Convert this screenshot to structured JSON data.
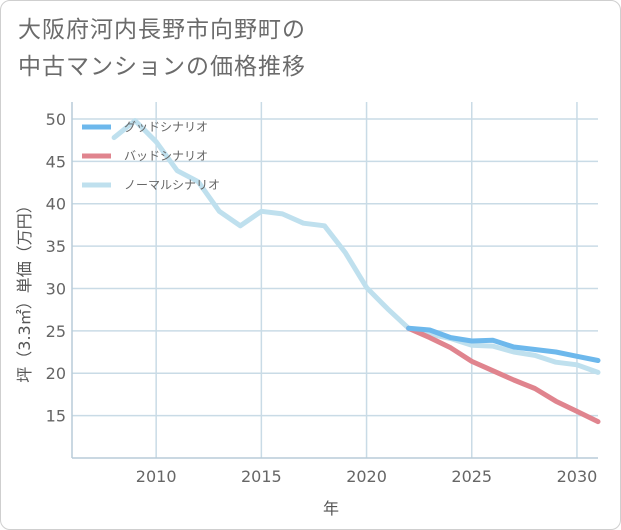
{
  "title": {
    "line1": "大阪府河内長野市向野町の",
    "line2": "中古マンションの価格推移"
  },
  "chart_data": {
    "type": "line",
    "xlabel": "年",
    "ylabel": "坪（3.3㎡）単価（万円）",
    "xlim": [
      2006,
      2031
    ],
    "ylim": [
      10,
      52
    ],
    "x_ticks": [
      2010,
      2015,
      2020,
      2025,
      2030
    ],
    "y_ticks": [
      15,
      20,
      25,
      30,
      35,
      40,
      45,
      50
    ],
    "grid": true,
    "legend_position": "top-left",
    "series": [
      {
        "name": "グッドシナリオ",
        "color": "#6db8ec",
        "x": [
          2022,
          2023,
          2024,
          2025,
          2026,
          2027,
          2028,
          2029,
          2030,
          2031
        ],
        "y": [
          25.3,
          25.1,
          24.2,
          23.8,
          23.9,
          23.1,
          22.8,
          22.5,
          22.0,
          21.5
        ]
      },
      {
        "name": "バッドシナリオ",
        "color": "#e0848e",
        "x": [
          2022,
          2023,
          2024,
          2025,
          2026,
          2027,
          2028,
          2029,
          2030,
          2031
        ],
        "y": [
          25.3,
          24.2,
          23.0,
          21.4,
          20.3,
          19.2,
          18.2,
          16.7,
          15.5,
          14.3
        ]
      },
      {
        "name": "ノーマルシナリオ",
        "color": "#bfe0ee",
        "x": [
          2008,
          2009,
          2010,
          2011,
          2012,
          2013,
          2014,
          2015,
          2016,
          2017,
          2018,
          2019,
          2020,
          2021,
          2022,
          2023,
          2024,
          2025,
          2026,
          2027,
          2028,
          2029,
          2030,
          2031
        ],
        "y": [
          47.8,
          49.8,
          47.3,
          43.9,
          42.6,
          39.1,
          37.4,
          39.1,
          38.8,
          37.7,
          37.4,
          34.2,
          30.1,
          27.6,
          25.3,
          24.6,
          24.1,
          23.3,
          23.2,
          22.5,
          22.1,
          21.3,
          21.0,
          20.1
        ]
      }
    ]
  }
}
